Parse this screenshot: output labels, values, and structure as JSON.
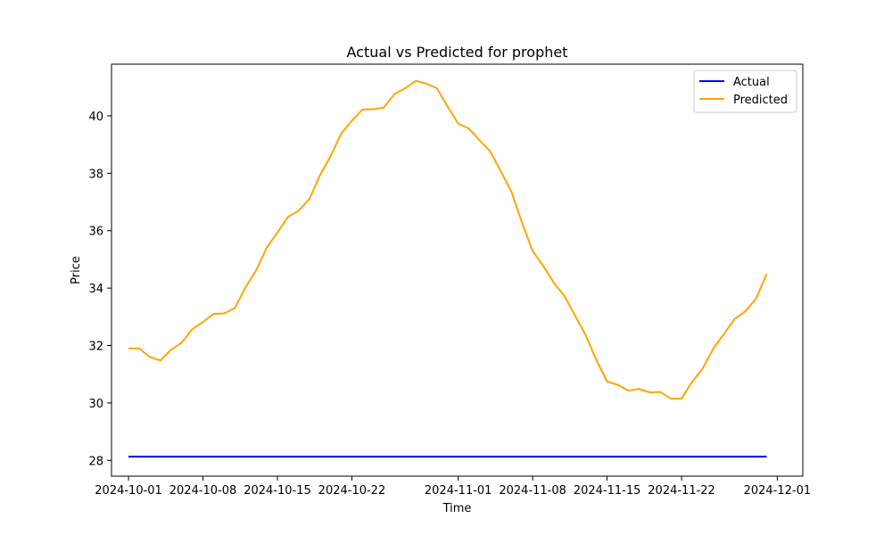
{
  "chart_data": {
    "type": "line",
    "title": "Actual vs Predicted for prophet",
    "xlabel": "Time",
    "ylabel": "Price",
    "x_tick_labels": [
      "2024-10-01",
      "2024-10-08",
      "2024-10-15",
      "2024-10-22",
      "2024-11-01",
      "2024-11-08",
      "2024-11-15",
      "2024-11-22",
      "2024-12-01"
    ],
    "x_tick_dates": [
      "2024-10-01",
      "2024-10-08",
      "2024-10-15",
      "2024-10-22",
      "2024-11-01",
      "2024-11-08",
      "2024-11-15",
      "2024-11-22",
      "2024-12-01"
    ],
    "y_ticks": [
      28,
      30,
      32,
      34,
      36,
      38,
      40
    ],
    "xlim": [
      "2023-09-28",
      "2024-12-04"
    ],
    "ylim": [
      27.45,
      41.8
    ],
    "grid": false,
    "legend_position": "top-right",
    "series": [
      {
        "name": "Actual",
        "color": "#0000ff",
        "x": [
          "2024-10-01",
          "2024-11-30"
        ],
        "values": [
          28.13,
          28.13
        ]
      },
      {
        "name": "Predicted",
        "color": "#ffa500",
        "x": [
          "2024-10-01",
          "2024-10-02",
          "2024-10-03",
          "2024-10-04",
          "2024-10-05",
          "2024-10-06",
          "2024-10-07",
          "2024-10-08",
          "2024-10-09",
          "2024-10-10",
          "2024-10-11",
          "2024-10-12",
          "2024-10-13",
          "2024-10-14",
          "2024-10-15",
          "2024-10-16",
          "2024-10-17",
          "2024-10-18",
          "2024-10-19",
          "2024-10-20",
          "2024-10-21",
          "2024-10-22",
          "2024-10-23",
          "2024-10-24",
          "2024-10-25",
          "2024-10-26",
          "2024-10-27",
          "2024-10-28",
          "2024-10-29",
          "2024-10-30",
          "2024-10-31",
          "2024-11-01",
          "2024-11-02",
          "2024-11-03",
          "2024-11-04",
          "2024-11-05",
          "2024-11-06",
          "2024-11-07",
          "2024-11-08",
          "2024-11-09",
          "2024-11-10",
          "2024-11-11",
          "2024-11-12",
          "2024-11-13",
          "2024-11-14",
          "2024-11-15",
          "2024-11-16",
          "2024-11-17",
          "2024-11-18",
          "2024-11-19",
          "2024-11-20",
          "2024-11-21",
          "2024-11-22",
          "2024-11-23",
          "2024-11-24",
          "2024-11-25",
          "2024-11-26",
          "2024-11-27",
          "2024-11-28",
          "2024-11-29",
          "2024-11-30"
        ],
        "values": [
          31.9,
          31.9,
          31.6,
          31.48,
          31.85,
          32.1,
          32.57,
          32.82,
          33.1,
          33.12,
          33.3,
          34.03,
          34.62,
          35.41,
          35.94,
          36.48,
          36.7,
          37.1,
          37.93,
          38.6,
          39.38,
          39.83,
          40.22,
          40.23,
          40.29,
          40.76,
          40.96,
          41.22,
          41.12,
          40.96,
          40.33,
          39.73,
          39.56,
          39.15,
          38.77,
          38.07,
          37.36,
          36.28,
          35.29,
          34.77,
          34.18,
          33.72,
          33.03,
          32.35,
          31.48,
          30.75,
          30.63,
          30.43,
          30.49,
          30.37,
          30.38,
          30.15,
          30.15,
          30.74,
          31.21,
          31.9,
          32.41,
          32.93,
          33.19,
          33.63,
          34.49
        ]
      }
    ]
  }
}
